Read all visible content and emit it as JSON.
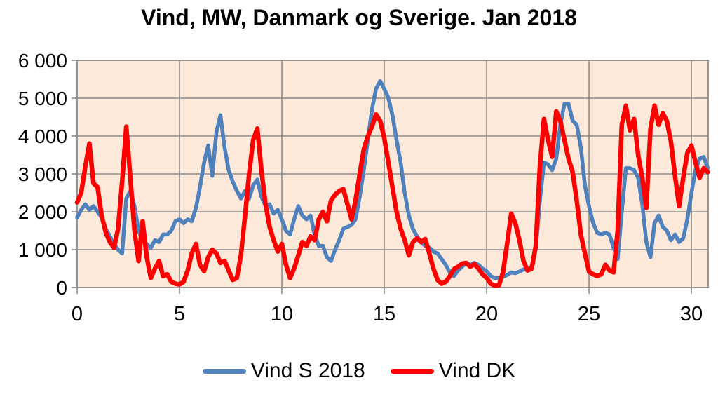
{
  "chart_data": {
    "type": "line",
    "title": "Vind, MW, Danmark og Sverige. Jan 2018",
    "xlabel": "",
    "ylabel": "",
    "xlim": [
      0,
      30.82
    ],
    "ylim": [
      0,
      6000
    ],
    "x_ticks": [
      0,
      5,
      10,
      15,
      20,
      25,
      30
    ],
    "y_ticks": [
      0,
      1000,
      2000,
      3000,
      4000,
      5000,
      6000
    ],
    "y_tick_labels": [
      "0",
      "1 000",
      "2 000",
      "3 000",
      "4 000",
      "5 000",
      "6 000"
    ],
    "grid": true,
    "legend_position": "bottom",
    "plot_background_color": "#fde9d9",
    "grid_color": "#8c8c8c",
    "x_start": 0,
    "x_step": 0.2,
    "x_unit": "day of month",
    "y_unit": "MW",
    "series": [
      {
        "name": "Vind S 2018",
        "color": "#4f81bd",
        "stroke_width": 5.5,
        "values": [
          1850,
          2050,
          2200,
          2050,
          2150,
          2000,
          1850,
          1550,
          1350,
          1150,
          1000,
          900,
          2350,
          2550,
          2150,
          1500,
          1250,
          1150,
          1050,
          1250,
          1200,
          1400,
          1400,
          1500,
          1750,
          1800,
          1700,
          1800,
          1750,
          2100,
          2650,
          3300,
          3750,
          2950,
          4100,
          4550,
          3700,
          3100,
          2800,
          2550,
          2350,
          2550,
          2350,
          2700,
          2850,
          2400,
          2150,
          2200,
          1950,
          2050,
          1800,
          1500,
          1400,
          1800,
          2150,
          1900,
          1800,
          1900,
          1400,
          1100,
          1100,
          800,
          700,
          1000,
          1250,
          1550,
          1600,
          1650,
          1800,
          2400,
          3100,
          3900,
          4700,
          5250,
          5450,
          5250,
          5000,
          4550,
          3900,
          3300,
          2500,
          1900,
          1550,
          1350,
          1200,
          1100,
          1050,
          950,
          900,
          750,
          600,
          400,
          300,
          450,
          550,
          650,
          600,
          650,
          600,
          500,
          430,
          300,
          250,
          250,
          280,
          330,
          400,
          380,
          420,
          480,
          480,
          550,
          1000,
          2300,
          3300,
          3250,
          3100,
          3400,
          4300,
          4850,
          4850,
          4400,
          4300,
          3700,
          2700,
          2150,
          1700,
          1450,
          1400,
          1450,
          1400,
          1050,
          750,
          2000,
          3150,
          3150,
          3100,
          2900,
          2200,
          1200,
          800,
          1700,
          1900,
          1600,
          1500,
          1250,
          1400,
          1200,
          1300,
          1800,
          2500,
          3100,
          3400,
          3450,
          3150
        ]
      },
      {
        "name": "Vind DK",
        "color": "#ff0000",
        "stroke_width": 6.5,
        "values": [
          2250,
          2500,
          3200,
          3800,
          2750,
          2650,
          1900,
          1450,
          1200,
          1050,
          1550,
          2800,
          4250,
          2900,
          1500,
          700,
          1750,
          800,
          250,
          500,
          700,
          300,
          350,
          150,
          100,
          80,
          150,
          450,
          900,
          1150,
          600,
          430,
          800,
          1000,
          900,
          650,
          700,
          450,
          200,
          250,
          850,
          1900,
          3000,
          3900,
          4200,
          3100,
          2200,
          1600,
          1250,
          950,
          1150,
          600,
          250,
          500,
          850,
          1200,
          1100,
          1350,
          1250,
          1800,
          2000,
          1750,
          2300,
          2450,
          2550,
          2600,
          2200,
          1800,
          2300,
          3000,
          3650,
          4000,
          4250,
          4570,
          4400,
          3950,
          3300,
          2650,
          2000,
          1550,
          1250,
          850,
          1200,
          1300,
          1200,
          1280,
          900,
          500,
          200,
          100,
          150,
          300,
          480,
          550,
          630,
          650,
          550,
          620,
          500,
          350,
          250,
          100,
          50,
          60,
          400,
          1150,
          1950,
          1700,
          1250,
          700,
          450,
          500,
          1100,
          3200,
          4450,
          3900,
          3450,
          4650,
          4400,
          3900,
          3400,
          3050,
          2300,
          1400,
          900,
          420,
          350,
          300,
          350,
          600,
          450,
          400,
          1500,
          4300,
          4800,
          4150,
          4450,
          3500,
          2900,
          2100,
          4200,
          4800,
          4300,
          4600,
          4400,
          3850,
          2950,
          2150,
          2900,
          3550,
          3750,
          3300,
          2900,
          3150,
          3050
        ]
      }
    ]
  }
}
